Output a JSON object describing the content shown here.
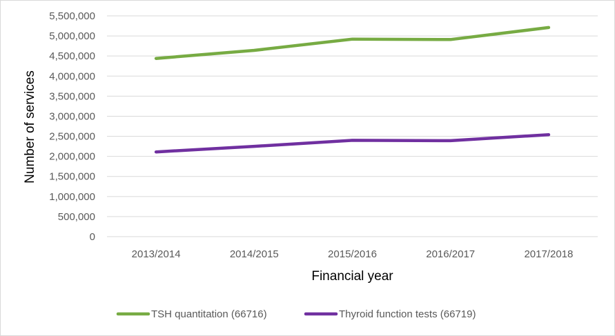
{
  "chart_data": {
    "type": "line",
    "categories": [
      "2013/2014",
      "2014/2015",
      "2015/2016",
      "2016/2017",
      "2017/2018"
    ],
    "series": [
      {
        "name": "TSH quantitation (66716)",
        "values": [
          4440000,
          4640000,
          4920000,
          4910000,
          5210000
        ],
        "color": "#77ab43"
      },
      {
        "name": "Thyroid function tests (66719)",
        "values": [
          2110000,
          2250000,
          2400000,
          2390000,
          2540000
        ],
        "color": "#7030a0"
      }
    ],
    "xlabel": "Financial year",
    "ylabel": "Number of services",
    "ylim": [
      0,
      5500000
    ],
    "yticks": [
      0,
      500000,
      1000000,
      1500000,
      2000000,
      2500000,
      3000000,
      3500000,
      4000000,
      4500000,
      5000000,
      5500000
    ],
    "ytick_labels": [
      "0",
      "500,000",
      "1,000,000",
      "1,500,000",
      "2,000,000",
      "2,500,000",
      "3,000,000",
      "3,500,000",
      "4,000,000",
      "4,500,000",
      "5,000,000",
      "5,500,000"
    ],
    "grid": "horizontal",
    "legend_position": "bottom",
    "gridline_color": "#d9d9d9"
  }
}
